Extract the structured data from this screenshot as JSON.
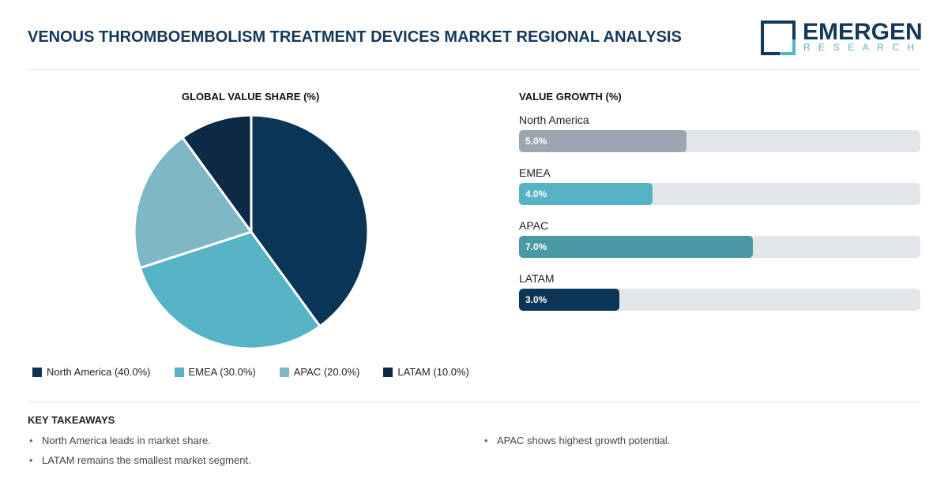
{
  "title": "VENOUS THROMBOEMBOLISM TREATMENT DEVICES MARKET REGIONAL ANALYSIS",
  "logo": {
    "name": "EMERGEN",
    "sub": "RESEARCH"
  },
  "chart_data": [
    {
      "type": "pie",
      "title": "GLOBAL VALUE SHARE (%)",
      "categories": [
        "North America",
        "EMEA",
        "APAC",
        "LATAM"
      ],
      "values": [
        40.0,
        30.0,
        20.0,
        10.0
      ],
      "colors": [
        "#0b3556",
        "#56b3c6",
        "#7db8c4",
        "#0a2a45"
      ],
      "legend_labels": [
        "North America (40.0%)",
        "EMEA (30.0%)",
        "APAC (20.0%)",
        "LATAM (10.0%)"
      ],
      "legend": "bottom"
    },
    {
      "type": "bar",
      "orientation": "horizontal",
      "title": "VALUE GROWTH (%)",
      "categories": [
        "North America",
        "EMEA",
        "APAC",
        "LATAM"
      ],
      "values": [
        5.0,
        4.0,
        7.0,
        3.0
      ],
      "labels": [
        "5.0%",
        "4.0%",
        "7.0%",
        "3.0%"
      ],
      "colors": [
        "#9ca6b0",
        "#56b3c6",
        "#4a97a6",
        "#0b3556"
      ],
      "xlim": [
        0,
        12
      ]
    }
  ],
  "takeaways": {
    "title": "KEY TAKEAWAYS",
    "left": [
      "North America leads in market share.",
      "LATAM remains the smallest market segment."
    ],
    "right": [
      "APAC shows highest growth potential."
    ]
  }
}
